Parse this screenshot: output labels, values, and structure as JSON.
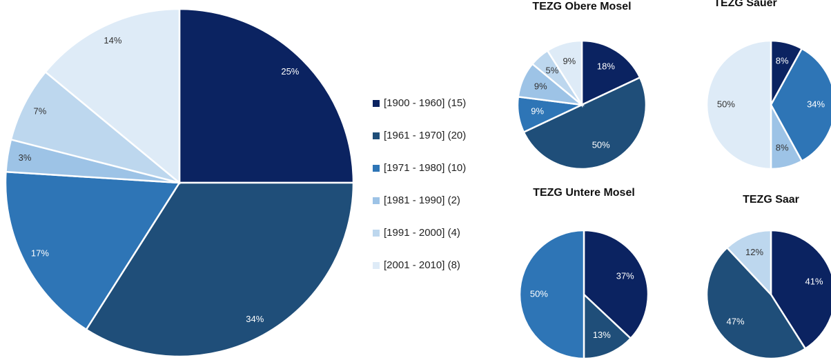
{
  "chart_data": [
    {
      "type": "pie",
      "categories": [
        "[1900 - 1960] (15)",
        "[1961 - 1970] (20)",
        "[1971 - 1980] (10)",
        "[1981 - 1990] (2)",
        "[1991 - 2000] (4)",
        "[2001 - 2010] (8)"
      ],
      "values": [
        25,
        34,
        17,
        3,
        7,
        14
      ],
      "colors": [
        "#0b2361",
        "#1f4e79",
        "#2e75b6",
        "#9dc3e6",
        "#bdd7ee",
        "#deebf7"
      ],
      "legend": "right"
    },
    {
      "type": "pie",
      "title": "TEZG Obere Mosel",
      "values": [
        18,
        50,
        9,
        9,
        5,
        9
      ],
      "colors": [
        "#0b2361",
        "#1f4e79",
        "#2e75b6",
        "#9dc3e6",
        "#bdd7ee",
        "#deebf7"
      ]
    },
    {
      "type": "pie",
      "title": "TEZG Sauer",
      "values": [
        8,
        34,
        8,
        50
      ],
      "colors": [
        "#0b2361",
        "#2e75b6",
        "#9dc3e6",
        "#deebf7"
      ]
    },
    {
      "type": "pie",
      "title": "TEZG Untere Mosel",
      "values": [
        37,
        13,
        50
      ],
      "colors": [
        "#0b2361",
        "#1f4e79",
        "#2e75b6"
      ]
    },
    {
      "type": "pie",
      "title": "TEZG Saar",
      "values": [
        41,
        47,
        12
      ],
      "colors": [
        "#0b2361",
        "#1f4e79",
        "#bdd7ee"
      ]
    }
  ]
}
